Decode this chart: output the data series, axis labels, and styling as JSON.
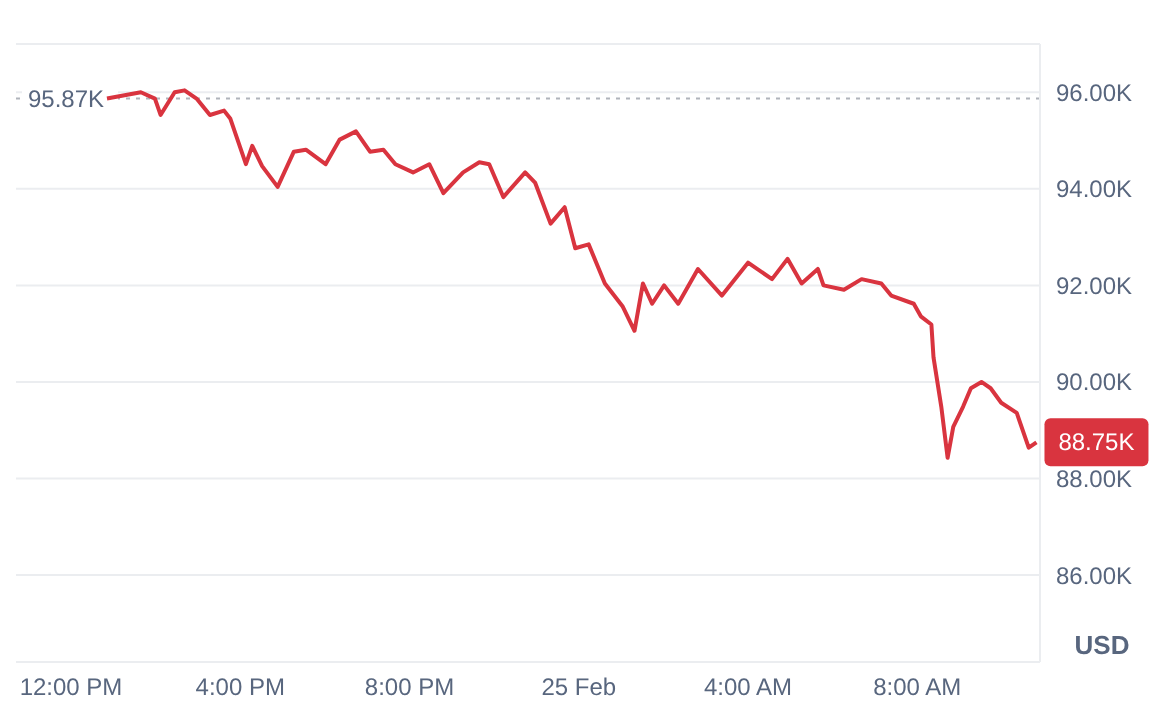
{
  "chart_data": {
    "type": "line",
    "ylabel": "USD",
    "x": [
      "--02-24T12:51",
      "--02-24T13:39",
      "--02-24T13:59",
      "--02-24T14:07",
      "--02-24T14:27",
      "--02-24T14:41",
      "--02-24T14:58",
      "--02-24T15:17",
      "--02-24T15:37",
      "--02-24T15:46",
      "--02-24T16:08",
      "--02-24T16:17",
      "--02-24T16:31",
      "--02-24T16:53",
      "--02-24T17:16",
      "--02-24T17:33",
      "--02-24T18:01",
      "--02-24T18:21",
      "--02-24T18:44",
      "--02-24T19:04",
      "--02-24T19:23",
      "--02-24T19:40",
      "--02-24T20:05",
      "--02-24T20:28",
      "--02-24T20:48",
      "--02-24T21:16",
      "--02-24T21:39",
      "--02-24T21:53",
      "--02-24T22:13",
      "--02-24T22:44",
      "--02-24T22:58",
      "--02-24T23:20",
      "--02-24T23:40",
      "--02-24T23:55",
      "--02-25T00:14",
      "--02-25T00:37",
      "--02-25T01:02",
      "--02-25T01:19",
      "--02-25T01:31",
      "--02-25T01:44",
      "--02-25T02:01",
      "--02-25T02:21",
      "--02-25T02:49",
      "--02-25T03:23",
      "--02-25T04:00",
      "--02-25T04:34",
      "--02-25T04:56",
      "--02-25T05:16",
      "--02-25T05:39",
      "--02-25T05:47",
      "--02-25T06:16",
      "--02-25T06:41",
      "--02-25T07:09",
      "--02-25T07:23",
      "--02-25T07:55",
      "--02-25T08:05",
      "--02-25T08:20",
      "--02-25T08:23",
      "--02-25T08:34",
      "--02-25T08:43",
      "--02-25T08:51",
      "--02-25T09:05",
      "--02-25T09:16",
      "--02-25T09:31",
      "--02-25T09:44",
      "--02-25T09:59",
      "--02-25T10:21",
      "--02-25T10:38",
      "--02-25T10:49"
    ],
    "series": [
      {
        "color": "#d9343f",
        "values": [
          95.87,
          96.0,
          95.87,
          95.53,
          96.0,
          96.04,
          95.87,
          95.53,
          95.62,
          95.45,
          94.51,
          94.89,
          94.47,
          94.04,
          94.77,
          94.81,
          94.51,
          95.02,
          95.19,
          94.77,
          94.81,
          94.51,
          94.34,
          94.51,
          93.91,
          94.34,
          94.55,
          94.51,
          93.83,
          94.34,
          94.13,
          93.28,
          93.62,
          92.77,
          92.85,
          92.04,
          91.57,
          91.06,
          92.04,
          91.62,
          92.0,
          91.62,
          92.34,
          91.79,
          92.47,
          92.13,
          92.55,
          92.04,
          92.34,
          92.0,
          91.91,
          92.13,
          92.04,
          91.79,
          91.62,
          91.36,
          91.19,
          90.51,
          89.49,
          88.43,
          89.07,
          89.49,
          89.87,
          90.0,
          89.87,
          89.57,
          89.36,
          88.64,
          88.75
        ]
      }
    ],
    "xlim": [
      "--02-24T10:42",
      "--02-25T10:54"
    ],
    "xticks": [
      {
        "value": "--02-24T12:00",
        "label": "12:00 PM"
      },
      {
        "value": "--02-24T16:00",
        "label": "4:00 PM"
      },
      {
        "value": "--02-24T20:00",
        "label": "8:00 PM"
      },
      {
        "value": "--02-25T00:00",
        "label": "25 Feb"
      },
      {
        "value": "--02-25T04:00",
        "label": "4:00 AM"
      },
      {
        "value": "--02-25T08:00",
        "label": "8:00 AM"
      }
    ],
    "ylim": [
      84.2,
      97
    ],
    "yticks": [
      {
        "value": 86,
        "label": "86.00K"
      },
      {
        "value": 88,
        "label": "88.00K"
      },
      {
        "value": 90,
        "label": "90.00K"
      },
      {
        "value": 92,
        "label": "92.00K"
      },
      {
        "value": 94,
        "label": "94.00K"
      },
      {
        "value": 96,
        "label": "96.00K"
      }
    ],
    "grid": "y",
    "marker": "none",
    "line_style": "solid",
    "legend": false,
    "ref_lines": [
      {
        "axis": "y",
        "value": 95.87,
        "label": "95.87K",
        "line_style": "dotted",
        "color": "#b0b4bb"
      }
    ],
    "annotations": [
      {
        "text": "88.75K",
        "x": "--02-25T10:49",
        "y": 88.75
      }
    ]
  }
}
